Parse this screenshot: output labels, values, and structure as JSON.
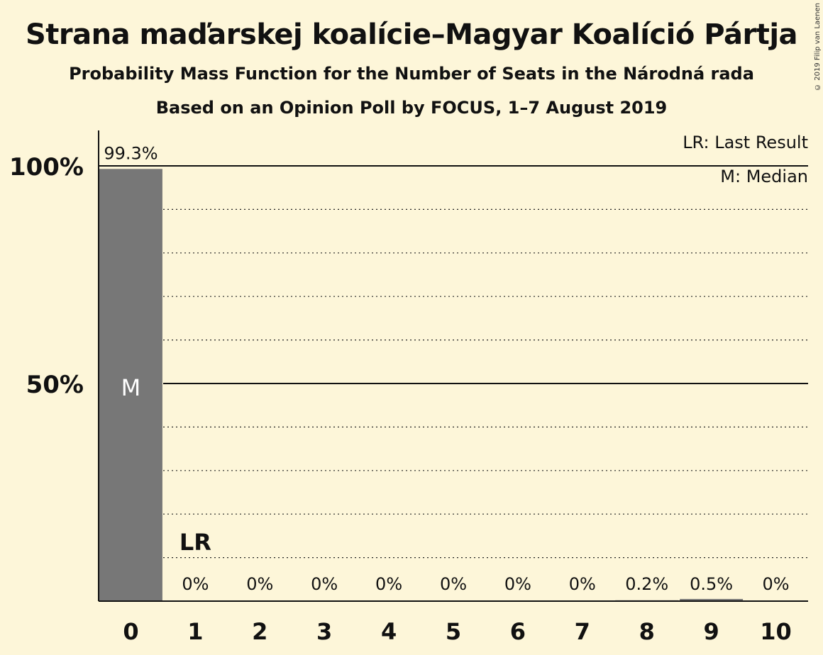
{
  "title": "Strana maďarskej koalície–Magyar Koalíció Pártja",
  "subtitle": "Probability Mass Function for the Number of Seats in the Národná rada",
  "subtitle2": "Based on an Opinion Poll by FOCUS, 1–7 August 2019",
  "copyright": "© 2019 Filip van Laenen",
  "legend": {
    "last_result": "LR: Last Result",
    "median": "M: Median"
  },
  "chart_data": {
    "type": "bar",
    "categories": [
      "0",
      "1",
      "2",
      "3",
      "4",
      "5",
      "6",
      "7",
      "8",
      "9",
      "10"
    ],
    "values": [
      99.3,
      0,
      0,
      0,
      0,
      0,
      0,
      0,
      0.2,
      0.5,
      0
    ],
    "value_labels": [
      "99.3%",
      "0%",
      "0%",
      "0%",
      "0%",
      "0%",
      "0%",
      "0%",
      "0.2%",
      "0.5%",
      "0%"
    ],
    "ylim": [
      0,
      100
    ],
    "yticks": [
      {
        "value": 50,
        "label": "50%"
      },
      {
        "value": 100,
        "label": "100%"
      }
    ],
    "grid": "dotted every 10%, solid at 50% and 100%",
    "median_seat": "0",
    "median_marker": "M",
    "last_result_seat": "1",
    "last_result_marker": "LR",
    "bar_color": "#777777",
    "background_color": "#fdf6d9"
  }
}
